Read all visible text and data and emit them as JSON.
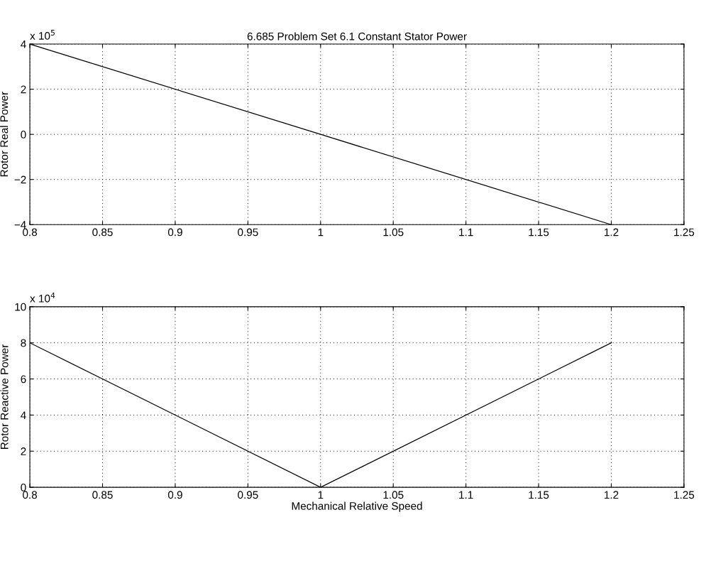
{
  "chart_data": [
    {
      "type": "line",
      "title": "6.685 Problem Set 6.1 Constant Stator Power",
      "ylabel": "Rotor Real Power",
      "annotations": [
        "x 10$^{5}$"
      ],
      "x": [
        0.8,
        1.0,
        1.2
      ],
      "series": [
        {
          "color": "#000000",
          "values": [
            4,
            0,
            -4
          ]
        }
      ],
      "xlim": [
        0.8,
        1.25
      ],
      "xticks": [
        0.8,
        0.85,
        0.9,
        0.95,
        1,
        1.05,
        1.1,
        1.15,
        1.2,
        1.25
      ],
      "ylim": [
        -4,
        4
      ],
      "yticks": [
        {
          "value": -4,
          "label": "−4"
        },
        {
          "value": -2,
          "label": "−2"
        },
        0,
        2,
        4
      ],
      "grid": true,
      "marker": "none",
      "line_style": "solid"
    },
    {
      "type": "line",
      "xlabel": "Mechanical Relative Speed",
      "ylabel": "Rotor Reactive Power",
      "annotations": [
        "x 10$^{4}$"
      ],
      "x": [
        0.8,
        1.0,
        1.2
      ],
      "series": [
        {
          "color": "#000000",
          "values": [
            8,
            0,
            8
          ]
        }
      ],
      "xlim": [
        0.8,
        1.25
      ],
      "xticks": [
        0.8,
        0.85,
        0.9,
        0.95,
        1,
        1.05,
        1.1,
        1.15,
        1.2,
        1.25
      ],
      "ylim": [
        0,
        10
      ],
      "yticks": [
        0,
        2,
        4,
        6,
        8,
        10
      ],
      "grid": true,
      "marker": "none",
      "line_style": "solid"
    }
  ]
}
